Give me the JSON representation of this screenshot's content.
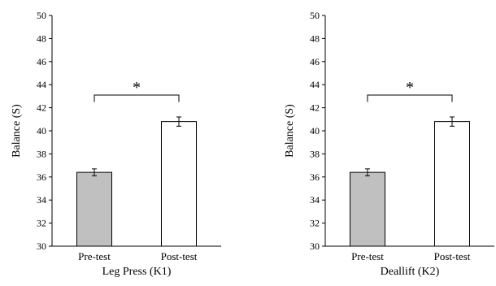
{
  "chart_data": [
    {
      "type": "bar",
      "xlabel": "Leg Press (K1)",
      "ylabel": "Balance (S)",
      "ylim": [
        30,
        50
      ],
      "yticks": [
        30,
        32,
        34,
        36,
        38,
        40,
        42,
        44,
        46,
        48,
        50
      ],
      "grid": false,
      "categories": [
        "Pre-test",
        "Post-test"
      ],
      "values": [
        36.4,
        40.8
      ],
      "errors": [
        0.3,
        0.4
      ],
      "bar_colors": [
        "#c0c0c0",
        "#ffffff"
      ],
      "significance": {
        "label": "*",
        "between": [
          0,
          1
        ]
      }
    },
    {
      "type": "bar",
      "xlabel": "Deallift (K2)",
      "ylabel": "Balance (S)",
      "ylim": [
        30,
        50
      ],
      "yticks": [
        30,
        32,
        34,
        36,
        38,
        40,
        42,
        44,
        46,
        48,
        50
      ],
      "grid": false,
      "categories": [
        "Pre-test",
        "Post-test"
      ],
      "values": [
        36.4,
        40.8
      ],
      "errors": [
        0.3,
        0.4
      ],
      "bar_colors": [
        "#c0c0c0",
        "#ffffff"
      ],
      "significance": {
        "label": "*",
        "between": [
          0,
          1
        ]
      }
    }
  ]
}
